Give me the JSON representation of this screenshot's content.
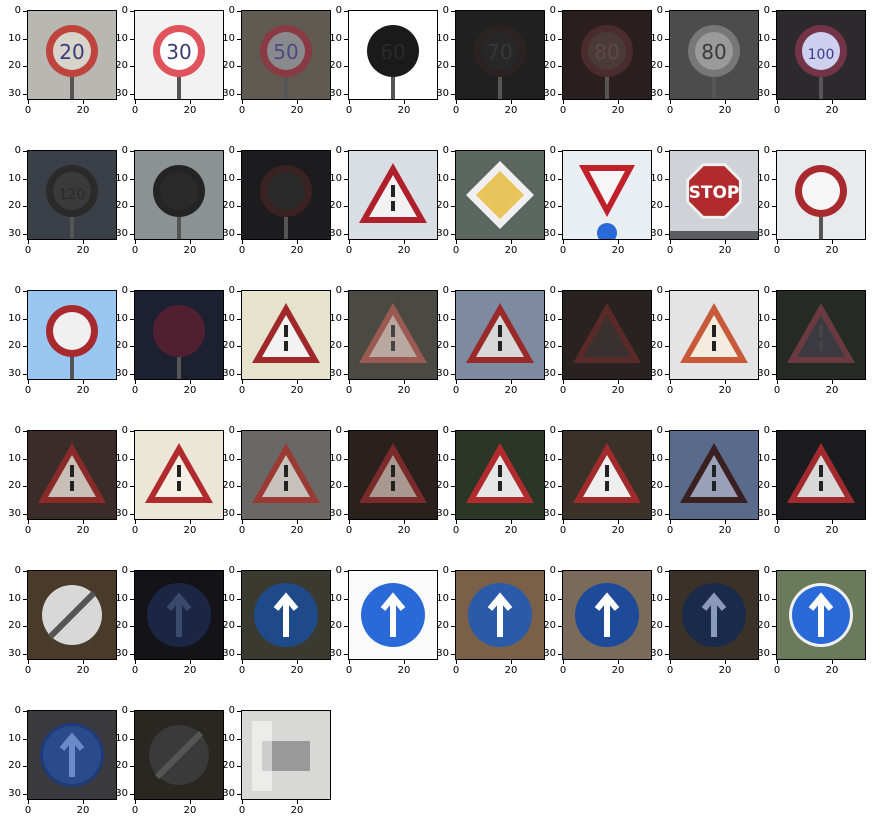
{
  "axes": {
    "yticks": [
      "0",
      "10",
      "20",
      "30"
    ],
    "xticks": [
      "0",
      "20"
    ]
  },
  "sign_texts": {
    "stop": "STOP"
  },
  "panels": [
    {
      "kind": "round",
      "bg": "#b9b7b2",
      "ring": "#c0443e",
      "fill": "#d8d4cc",
      "glyph": "20",
      "glyph_color": "#3a3a7a"
    },
    {
      "kind": "round",
      "bg": "#f2f2f2",
      "ring": "#e0525c",
      "fill": "#ffffff",
      "glyph": "30",
      "glyph_color": "#3c3f6a"
    },
    {
      "kind": "round",
      "bg": "#5f5a52",
      "ring": "#8a3a42",
      "fill": "#8a8a8e",
      "glyph": "50",
      "glyph_color": "#4b4a7e"
    },
    {
      "kind": "round",
      "bg": "#ffffff",
      "ring": "#1a1a1a",
      "fill": "#1a1a1a",
      "glyph": "60",
      "glyph_color": "#2a2a2a"
    },
    {
      "kind": "round",
      "bg": "#202020",
      "ring": "#2c2222",
      "fill": "#272727",
      "glyph": "70",
      "glyph_color": "#383838"
    },
    {
      "kind": "round",
      "bg": "#2a1e1e",
      "ring": "#4a2c2c",
      "fill": "#4a3a3a",
      "glyph": "80",
      "glyph_color": "#604848"
    },
    {
      "kind": "round",
      "bg": "#4c4c4c",
      "ring": "#777",
      "fill": "#9a9a9a",
      "glyph": "80",
      "glyph_color": "#3a3a3a"
    },
    {
      "kind": "round",
      "bg": "#2c2a2c",
      "ring": "#733448",
      "fill": "#cfcff0",
      "glyph": "100",
      "glyph_color": "#3a3a8a"
    },
    {
      "kind": "round",
      "bg": "#3a3f48",
      "ring": "#2a2a2a",
      "fill": "#3a3a3a",
      "glyph": "120",
      "glyph_color": "#2a2a2a"
    },
    {
      "kind": "round",
      "bg": "#8b9294",
      "ring": "#242424",
      "fill": "#2a2a2a",
      "glyph": "",
      "glyph_color": "#333"
    },
    {
      "kind": "round",
      "bg": "#1c1c1e",
      "ring": "#3a2222",
      "fill": "#2a2a2a",
      "glyph": "",
      "glyph_color": "#333"
    },
    {
      "kind": "triangle",
      "bg": "#d9dde4",
      "ring": "#b0202a",
      "fill": "#f2f2f2",
      "glyph": "",
      "glyph_color": "#222"
    },
    {
      "kind": "diamond",
      "bg": "#5b6660",
      "ring": "#f0f0f0",
      "fill": "#e8c45a",
      "glyph": "",
      "glyph_color": "#222"
    },
    {
      "kind": "yield",
      "bg": "#e8eef2",
      "ring": "#c0202a",
      "fill": "#f6f6f6",
      "glyph": "",
      "glyph_color": "#222"
    },
    {
      "kind": "stop",
      "bg": "#cfd2d6",
      "ring": "#f0f0f0",
      "fill": "#b02a2e",
      "glyph": "STOP",
      "glyph_color": "#ffffff"
    },
    {
      "kind": "round",
      "bg": "#e8ebee",
      "ring": "#a82a2e",
      "fill": "#f6f6f6",
      "glyph": "",
      "glyph_color": "#222"
    },
    {
      "kind": "round",
      "bg": "#9ac6f2",
      "ring": "#a82a2e",
      "fill": "#f0f0f0",
      "glyph": "",
      "glyph_color": "#222"
    },
    {
      "kind": "round",
      "bg": "#1c2030",
      "ring": "#502030",
      "fill": "#502030",
      "glyph": "",
      "glyph_color": "#333"
    },
    {
      "kind": "triangle",
      "bg": "#e6e2cc",
      "ring": "#a0282a",
      "fill": "#f2f2f2",
      "glyph": "",
      "glyph_color": "#222"
    },
    {
      "kind": "triangle",
      "bg": "#4a4a42",
      "ring": "#9a5a52",
      "fill": "#b8a8a0",
      "glyph": "",
      "glyph_color": "#444"
    },
    {
      "kind": "triangle",
      "bg": "#7e8aa0",
      "ring": "#9a2a2a",
      "fill": "#d8d8d8",
      "glyph": "",
      "glyph_color": "#222"
    },
    {
      "kind": "triangle",
      "bg": "#2a2220",
      "ring": "#5a2a28",
      "fill": "#3a3030",
      "glyph": "",
      "glyph_color": "#333"
    },
    {
      "kind": "triangle",
      "bg": "#e4e4e4",
      "ring": "#c85a3a",
      "fill": "#f4ecde",
      "glyph": "",
      "glyph_color": "#222"
    },
    {
      "kind": "triangle",
      "bg": "#262a24",
      "ring": "#6a3a40",
      "fill": "#3a3a40",
      "glyph": "",
      "glyph_color": "#444"
    },
    {
      "kind": "triangle",
      "bg": "#3a2c28",
      "ring": "#8a2a28",
      "fill": "#c8c0b8",
      "glyph": "",
      "glyph_color": "#222"
    },
    {
      "kind": "triangle",
      "bg": "#ebe6d6",
      "ring": "#b02a2e",
      "fill": "#f4f0e6",
      "glyph": "",
      "glyph_color": "#222"
    },
    {
      "kind": "triangle",
      "bg": "#6a6866",
      "ring": "#9a3a34",
      "fill": "#c8c2bc",
      "glyph": "",
      "glyph_color": "#222"
    },
    {
      "kind": "triangle",
      "bg": "#2a201e",
      "ring": "#7a2a28",
      "fill": "#a89890",
      "glyph": "",
      "glyph_color": "#222"
    },
    {
      "kind": "triangle",
      "bg": "#2c3626",
      "ring": "#b02a2e",
      "fill": "#e6e6e6",
      "glyph": "",
      "glyph_color": "#222"
    },
    {
      "kind": "triangle",
      "bg": "#3a3228",
      "ring": "#a02a2c",
      "fill": "#eeeeee",
      "glyph": "",
      "glyph_color": "#222"
    },
    {
      "kind": "triangle",
      "bg": "#5a6a8a",
      "ring": "#3a2020",
      "fill": "#9aa0b8",
      "glyph": "",
      "glyph_color": "#222"
    },
    {
      "kind": "triangle",
      "bg": "#1c1c1e",
      "ring": "#a02a2e",
      "fill": "#d8d8d8",
      "glyph": "",
      "glyph_color": "#222"
    },
    {
      "kind": "end",
      "bg": "#4a3a2a",
      "ring": "#c8c8c8",
      "fill": "#d8d8d8",
      "glyph": "",
      "glyph_color": "#444"
    },
    {
      "kind": "blue",
      "bg": "#141418",
      "ring": "#1a2644",
      "fill": "#1a2644",
      "glyph": "",
      "glyph_color": "#3a4a6a"
    },
    {
      "kind": "blue",
      "bg": "#3a3a30",
      "ring": "#1e4a8a",
      "fill": "#1e4a8a",
      "glyph": "",
      "glyph_color": "#ffffff"
    },
    {
      "kind": "blue",
      "bg": "#fafafa",
      "ring": "#2a6ad8",
      "fill": "#2a6ad8",
      "glyph": "",
      "glyph_color": "#ffffff"
    },
    {
      "kind": "blue",
      "bg": "#7a6048",
      "ring": "#2a5aa8",
      "fill": "#2a5aa8",
      "glyph": "",
      "glyph_color": "#ffffff"
    },
    {
      "kind": "blue",
      "bg": "#7a6a5a",
      "ring": "#1e4a9a",
      "fill": "#1e4a9a",
      "glyph": "",
      "glyph_color": "#ffffff"
    },
    {
      "kind": "blue",
      "bg": "#3a3228",
      "ring": "#1a2a4a",
      "fill": "#1a2a4a",
      "glyph": "",
      "glyph_color": "#8a9ab8"
    },
    {
      "kind": "blue",
      "bg": "#6a7a5a",
      "ring": "#f0f0f0",
      "fill": "#2a6ad8",
      "glyph": "",
      "glyph_color": "#ffffff"
    },
    {
      "kind": "blue",
      "bg": "#3a3a3e",
      "ring": "#1e3a7a",
      "fill": "#2a4a8a",
      "glyph": "",
      "glyph_color": "#6a8ac8"
    },
    {
      "kind": "end",
      "bg": "#2a2622",
      "ring": "#6a6a6a",
      "fill": "#3a3a3a",
      "glyph": "",
      "glyph_color": "#222"
    },
    {
      "kind": "blur",
      "bg": "#d8d8d6",
      "ring": "#8a8a8a",
      "fill": "#9a9a9a",
      "glyph": "",
      "glyph_color": "#333"
    }
  ]
}
